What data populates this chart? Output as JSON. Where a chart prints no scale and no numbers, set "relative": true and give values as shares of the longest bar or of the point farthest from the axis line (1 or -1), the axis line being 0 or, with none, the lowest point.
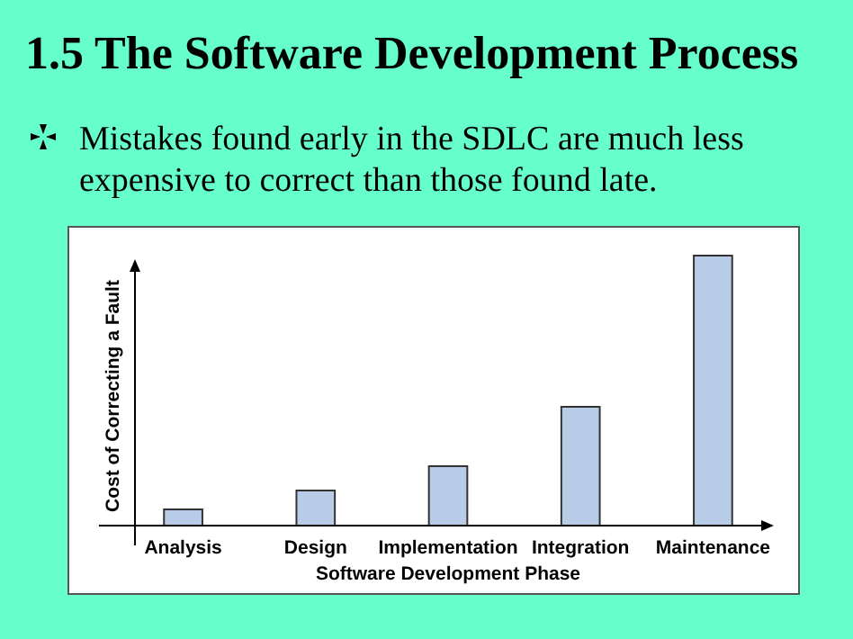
{
  "chart_data": {
    "type": "bar",
    "title": "1.5  The Software Development Process",
    "subtitle": "Mistakes found early in the SDLC are much less expensive to correct than those found late.",
    "categories": [
      "Analysis",
      "Design",
      "Implementation",
      "Integration",
      "Maintenance"
    ],
    "values": [
      0.06,
      0.13,
      0.22,
      0.44,
      1
    ],
    "color": "#b8cce8",
    "relative": true,
    "xlabel": "Software Development Phase",
    "ylabel": "Cost of Correcting a Fault"
  }
}
